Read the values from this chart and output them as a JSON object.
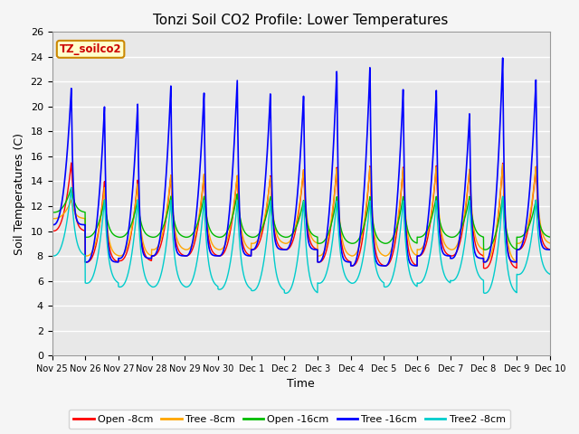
{
  "title": "Tonzi Soil CO2 Profile: Lower Temperatures",
  "ylabel": "Soil Temperatures (C)",
  "xlabel": "Time",
  "legend_label": "TZ_soilco2",
  "ylim": [
    0,
    26
  ],
  "yticks": [
    0,
    2,
    4,
    6,
    8,
    10,
    12,
    14,
    16,
    18,
    20,
    22,
    24,
    26
  ],
  "xtick_labels": [
    "Nov 25",
    "Nov 26",
    "Nov 27",
    "Nov 28",
    "Nov 29",
    "Nov 30",
    "Dec 1",
    "Dec 2",
    "Dec 3",
    "Dec 4",
    "Dec 5",
    "Dec 6",
    "Dec 7",
    "Dec 8",
    "Dec 9",
    "Dec 10"
  ],
  "series": [
    {
      "label": "Open -8cm",
      "color": "#ff0000"
    },
    {
      "label": "Tree -8cm",
      "color": "#ffa500"
    },
    {
      "label": "Open -16cm",
      "color": "#00bb00"
    },
    {
      "label": "Tree -16cm",
      "color": "#0000ff"
    },
    {
      "label": "Tree2 -8cm",
      "color": "#00cccc"
    }
  ],
  "plot_bg_color": "#e8e8e8",
  "fig_bg_color": "#f5f5f5",
  "title_fontsize": 11,
  "axis_label_fontsize": 9,
  "tick_fontsize": 8,
  "n_days": 15,
  "pts_per_day": 240,
  "peak_heights_blue": [
    21.5,
    20.0,
    20.2,
    21.7,
    21.2,
    22.3,
    21.2,
    21.0,
    23.0,
    23.3,
    21.5,
    21.4,
    19.5,
    24.0,
    22.2
  ],
  "peak_heights_red": [
    15.5,
    14.0,
    14.1,
    14.5,
    14.6,
    14.5,
    14.5,
    15.0,
    15.2,
    15.3,
    15.2,
    15.3,
    15.0,
    15.5,
    15.2
  ],
  "peak_heights_orange": [
    12.5,
    13.5,
    13.8,
    14.5,
    14.6,
    14.5,
    14.4,
    15.0,
    15.1,
    15.2,
    15.1,
    15.2,
    15.0,
    15.4,
    15.2
  ],
  "peak_heights_green": [
    13.5,
    12.5,
    12.5,
    12.8,
    12.8,
    13.0,
    12.8,
    12.5,
    12.8,
    12.8,
    12.8,
    12.8,
    12.8,
    12.8,
    12.5
  ],
  "peak_heights_cyan": [
    13.5,
    12.5,
    12.5,
    12.5,
    12.5,
    12.5,
    12.5,
    12.5,
    12.5,
    12.5,
    12.5,
    12.5,
    12.5,
    12.8,
    12.5
  ],
  "min_vals_red": [
    10.0,
    7.5,
    7.6,
    8.0,
    8.0,
    8.0,
    8.5,
    8.5,
    7.5,
    7.2,
    7.2,
    8.0,
    8.0,
    7.0,
    8.5
  ],
  "min_vals_orange": [
    11.0,
    8.0,
    8.0,
    8.5,
    8.5,
    8.5,
    9.0,
    9.0,
    8.0,
    8.0,
    8.0,
    8.5,
    8.5,
    7.5,
    9.0
  ],
  "min_vals_green": [
    11.5,
    9.5,
    9.5,
    9.5,
    9.5,
    9.5,
    9.5,
    9.5,
    9.0,
    9.0,
    9.0,
    9.5,
    9.5,
    8.5,
    9.5
  ],
  "min_vals_blue": [
    10.5,
    7.5,
    7.8,
    8.0,
    8.0,
    8.0,
    8.5,
    8.5,
    7.5,
    7.2,
    7.2,
    8.0,
    7.8,
    7.5,
    8.5
  ],
  "min_vals_cyan": [
    8.0,
    5.8,
    5.5,
    5.5,
    5.5,
    5.3,
    5.2,
    5.0,
    5.8,
    5.8,
    5.5,
    5.8,
    6.0,
    5.0,
    6.5
  ]
}
